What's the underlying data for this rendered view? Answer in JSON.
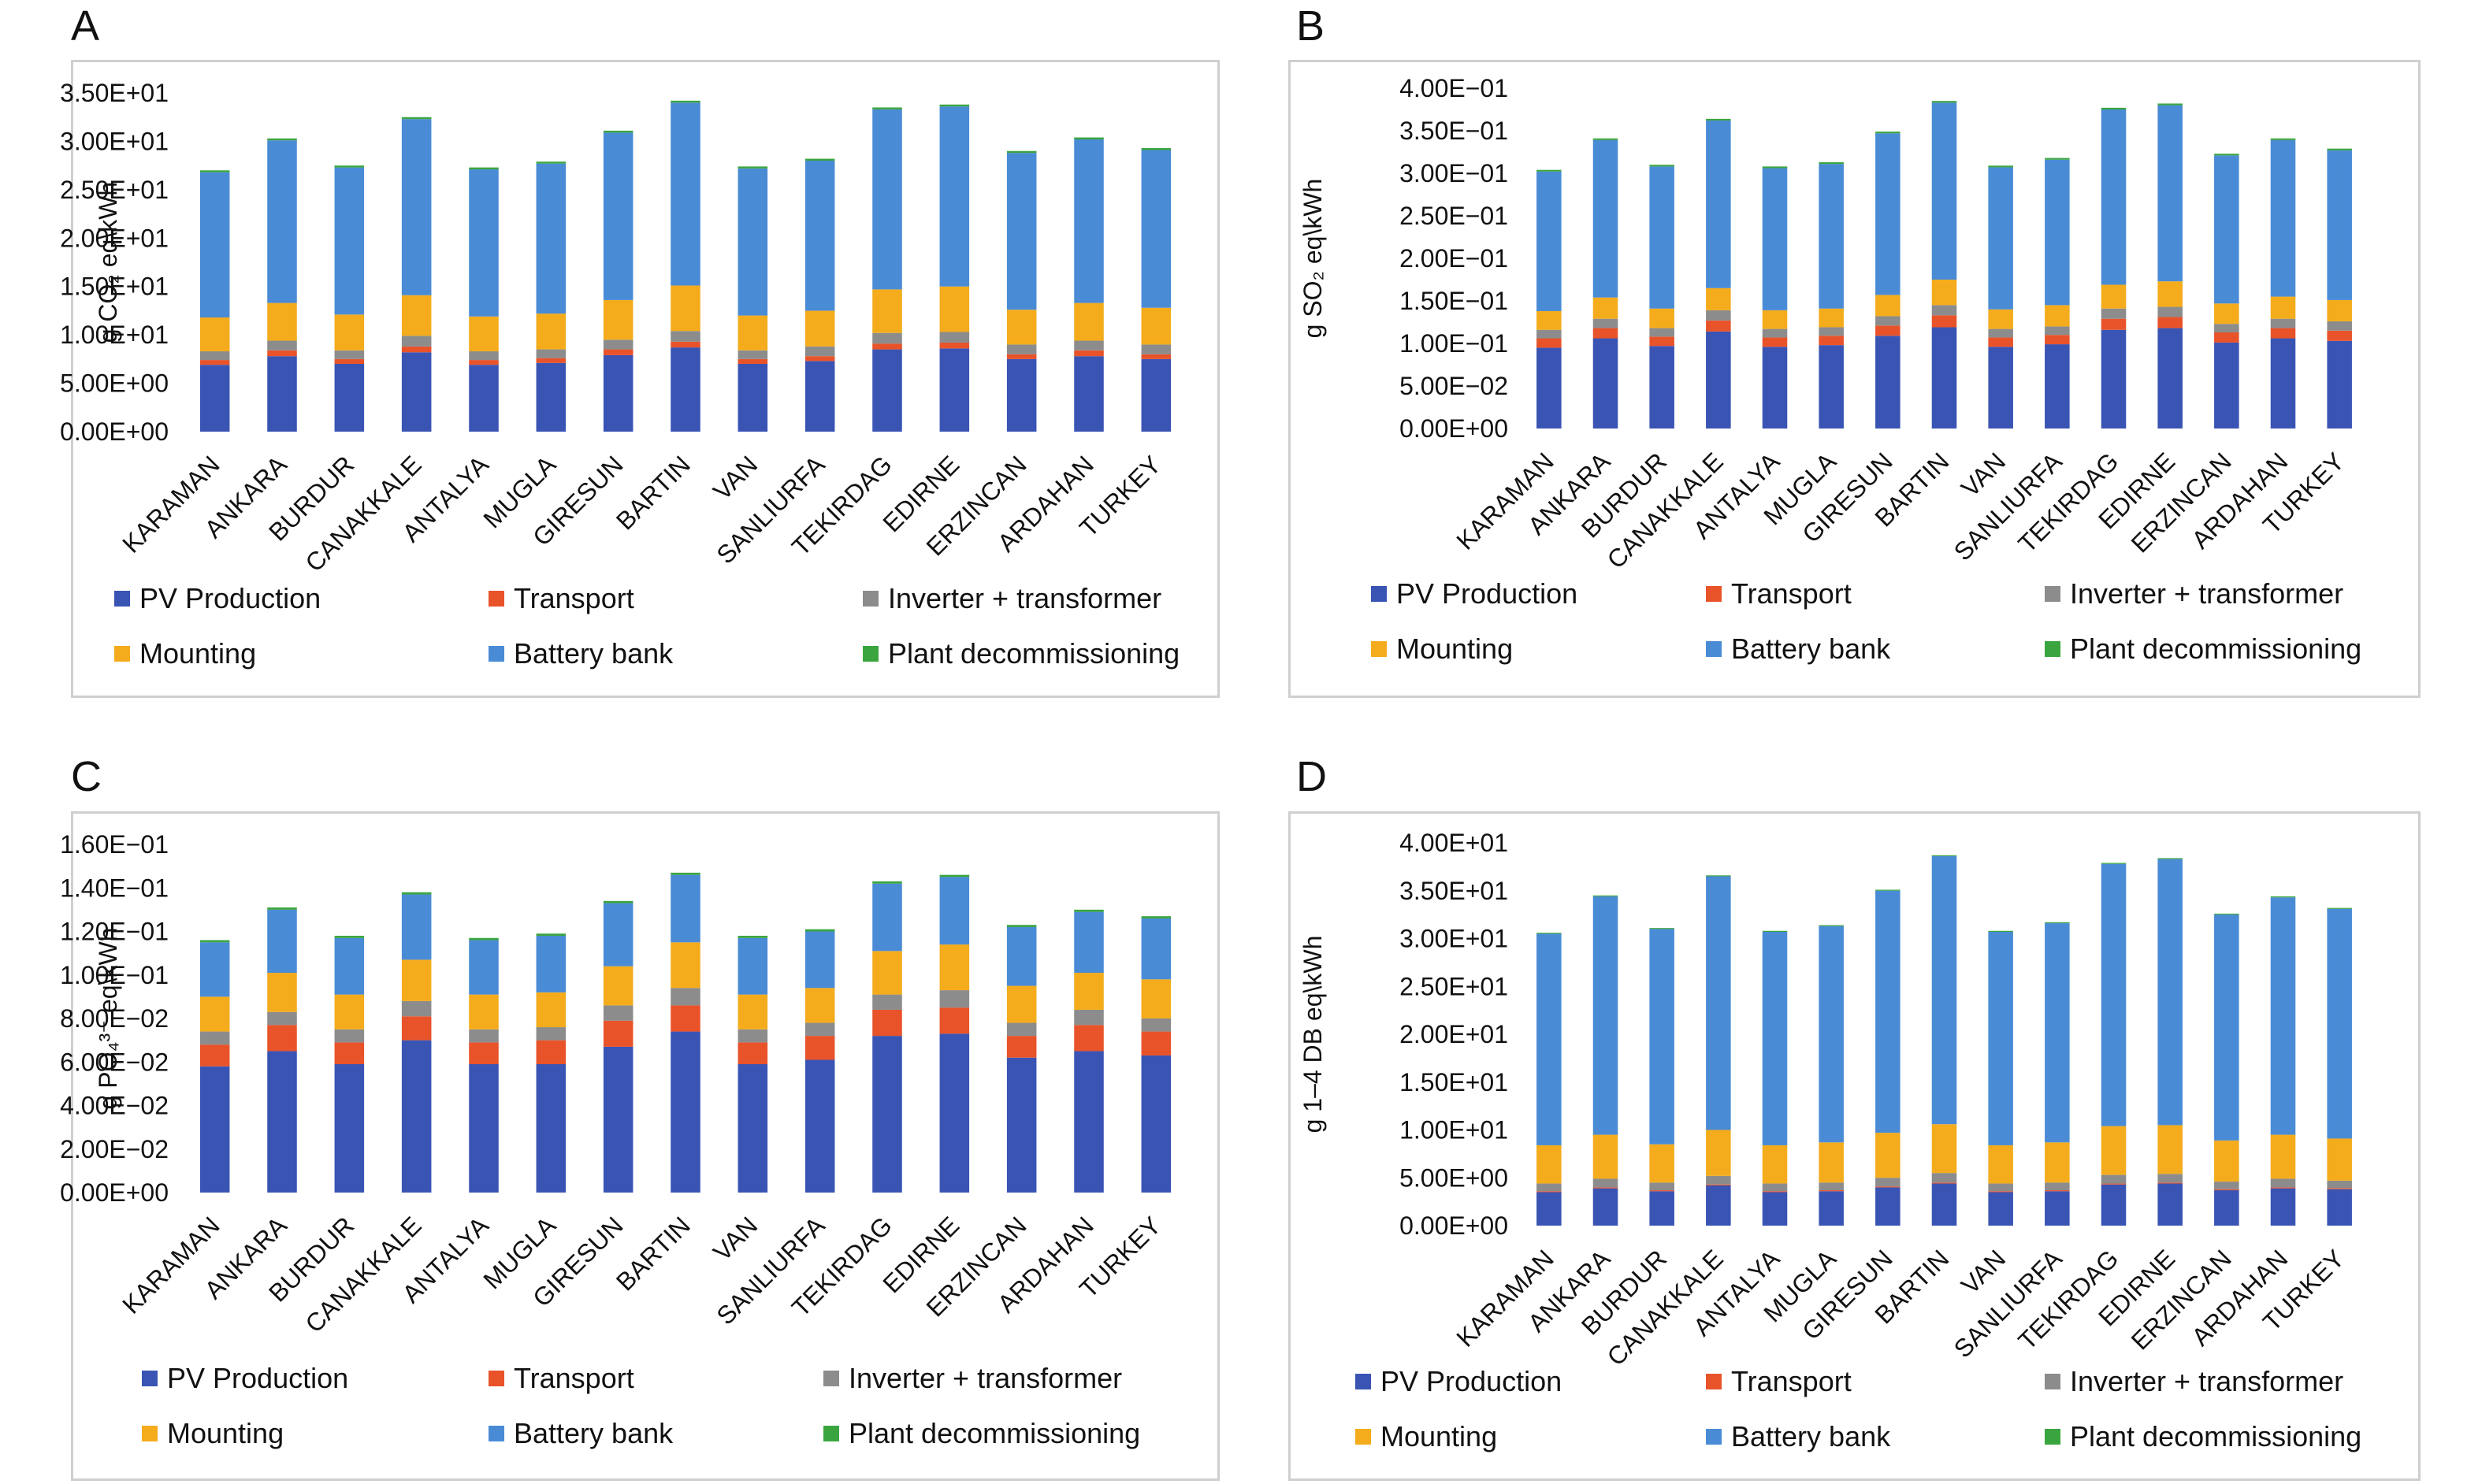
{
  "panel_letters": [
    "A",
    "B",
    "C",
    "D"
  ],
  "legend": [
    {
      "name": "PV Production",
      "color": "#3a54b4"
    },
    {
      "name": "Transport",
      "color": "#e8532a"
    },
    {
      "name": "Inverter + transformer",
      "color": "#8c8c8c"
    },
    {
      "name": "Mounting",
      "color": "#f4ac1c"
    },
    {
      "name": "Battery bank",
      "color": "#4a8bd6"
    },
    {
      "name": "Plant decommissioning",
      "color": "#3aa53f"
    }
  ],
  "chart_data": [
    {
      "type": "bar",
      "stacked": true,
      "panel": "A",
      "ylabel": "g CO₂ eq\\kWh",
      "ylim": [
        0,
        35
      ],
      "yticks": [
        "0.00E+00",
        "5.00E+00",
        "1.00E+01",
        "1.50E+01",
        "2.00E+01",
        "2.50E+01",
        "3.00E+01",
        "3.50E+01"
      ],
      "categories": [
        "KARAMAN",
        "ANKARA",
        "BURDUR",
        "CANAKKALE",
        "ANTALYA",
        "MUGLA",
        "GIRESUN",
        "BARTIN",
        "VAN",
        "SANLIURFA",
        "TEKIRDAG",
        "EDIRNE",
        "ERZINCAN",
        "ARDAHAN",
        "TURKEY"
      ],
      "series": [
        {
          "name": "PV Production",
          "values": [
            6.9,
            7.8,
            7.0,
            8.2,
            6.9,
            7.1,
            7.9,
            8.7,
            7.0,
            7.3,
            8.5,
            8.6,
            7.5,
            7.8,
            7.5
          ]
        },
        {
          "name": "Transport",
          "values": [
            0.5,
            0.6,
            0.5,
            0.6,
            0.5,
            0.5,
            0.6,
            0.6,
            0.5,
            0.5,
            0.6,
            0.6,
            0.5,
            0.6,
            0.5
          ]
        },
        {
          "name": "Inverter + transformer",
          "values": [
            0.9,
            1.0,
            0.9,
            1.1,
            0.9,
            0.9,
            1.0,
            1.1,
            0.9,
            1.0,
            1.1,
            1.1,
            1.0,
            1.0,
            1.0
          ]
        },
        {
          "name": "Mounting",
          "values": [
            3.5,
            3.9,
            3.7,
            4.2,
            3.6,
            3.7,
            4.1,
            4.7,
            3.6,
            3.7,
            4.5,
            4.7,
            3.6,
            3.9,
            3.8
          ]
        },
        {
          "name": "Battery bank",
          "values": [
            15.0,
            16.8,
            15.2,
            18.2,
            15.2,
            15.5,
            17.3,
            18.9,
            15.2,
            15.5,
            18.6,
            18.6,
            16.2,
            16.9,
            16.3
          ]
        },
        {
          "name": "Plant decommissioning",
          "values": [
            0.2,
            0.2,
            0.2,
            0.2,
            0.2,
            0.2,
            0.2,
            0.2,
            0.2,
            0.2,
            0.2,
            0.2,
            0.2,
            0.2,
            0.2
          ]
        }
      ]
    },
    {
      "type": "bar",
      "stacked": true,
      "panel": "B",
      "ylabel": "g SO₂ eq\\kWh",
      "ylim": [
        0,
        0.4
      ],
      "yticks": [
        "0.00E+00",
        "5.00E−02",
        "1.00E−01",
        "1.50E−01",
        "2.00E−01",
        "2.50E−01",
        "3.00E−01",
        "3.50E−01",
        "4.00E−01"
      ],
      "categories": [
        "KARAMAN",
        "ANKARA",
        "BURDUR",
        "CANAKKALE",
        "ANTALYA",
        "MUGLA",
        "GIRESUN",
        "BARTIN",
        "VAN",
        "SANLIURFA",
        "TEKIRDAG",
        "EDIRNE",
        "ERZINCAN",
        "ARDAHAN",
        "TURKEY"
      ],
      "series": [
        {
          "name": "PV Production",
          "values": [
            0.095,
            0.106,
            0.097,
            0.114,
            0.096,
            0.098,
            0.109,
            0.119,
            0.096,
            0.099,
            0.116,
            0.118,
            0.101,
            0.106,
            0.103
          ]
        },
        {
          "name": "Transport",
          "values": [
            0.011,
            0.012,
            0.011,
            0.013,
            0.011,
            0.011,
            0.012,
            0.014,
            0.011,
            0.011,
            0.013,
            0.013,
            0.012,
            0.012,
            0.012
          ]
        },
        {
          "name": "Inverter + transformer",
          "values": [
            0.01,
            0.011,
            0.01,
            0.012,
            0.01,
            0.01,
            0.011,
            0.012,
            0.01,
            0.01,
            0.012,
            0.012,
            0.01,
            0.011,
            0.011
          ]
        },
        {
          "name": "Mounting",
          "values": [
            0.022,
            0.025,
            0.023,
            0.026,
            0.022,
            0.022,
            0.025,
            0.03,
            0.023,
            0.025,
            0.028,
            0.03,
            0.024,
            0.026,
            0.025
          ]
        },
        {
          "name": "Battery bank",
          "values": [
            0.164,
            0.185,
            0.167,
            0.197,
            0.167,
            0.17,
            0.19,
            0.208,
            0.167,
            0.171,
            0.206,
            0.207,
            0.174,
            0.184,
            0.176
          ]
        },
        {
          "name": "Plant decommissioning",
          "values": [
            0.002,
            0.002,
            0.002,
            0.002,
            0.002,
            0.002,
            0.002,
            0.002,
            0.002,
            0.002,
            0.002,
            0.002,
            0.002,
            0.002,
            0.002
          ]
        }
      ]
    },
    {
      "type": "bar",
      "stacked": true,
      "panel": "C",
      "ylabel": "g PO₄³⁻ eq\\kWh",
      "ylim": [
        0,
        0.16
      ],
      "yticks": [
        "0.00E+00",
        "2.00E−02",
        "4.00E−02",
        "6.00E−02",
        "8.00E−02",
        "1.00E−01",
        "1.20E−01",
        "1.40E−01",
        "1.60E−01"
      ],
      "categories": [
        "KARAMAN",
        "ANKARA",
        "BURDUR",
        "CANAKKALE",
        "ANTALYA",
        "MUGLA",
        "GIRESUN",
        "BARTIN",
        "VAN",
        "SANLIURFA",
        "TEKIRDAG",
        "EDIRNE",
        "ERZINCAN",
        "ARDAHAN",
        "TURKEY"
      ],
      "series": [
        {
          "name": "PV Production",
          "values": [
            0.058,
            0.065,
            0.059,
            0.07,
            0.059,
            0.059,
            0.067,
            0.074,
            0.059,
            0.061,
            0.072,
            0.073,
            0.062,
            0.065,
            0.063
          ]
        },
        {
          "name": "Transport",
          "values": [
            0.01,
            0.012,
            0.01,
            0.011,
            0.01,
            0.011,
            0.012,
            0.012,
            0.01,
            0.011,
            0.012,
            0.012,
            0.01,
            0.012,
            0.011
          ]
        },
        {
          "name": "Inverter + transformer",
          "values": [
            0.006,
            0.006,
            0.006,
            0.007,
            0.006,
            0.006,
            0.007,
            0.008,
            0.006,
            0.006,
            0.007,
            0.008,
            0.006,
            0.007,
            0.006
          ]
        },
        {
          "name": "Mounting",
          "values": [
            0.016,
            0.018,
            0.016,
            0.019,
            0.016,
            0.016,
            0.018,
            0.021,
            0.016,
            0.016,
            0.02,
            0.021,
            0.017,
            0.017,
            0.018
          ]
        },
        {
          "name": "Battery bank",
          "values": [
            0.025,
            0.029,
            0.026,
            0.03,
            0.025,
            0.026,
            0.029,
            0.031,
            0.026,
            0.026,
            0.031,
            0.031,
            0.027,
            0.028,
            0.028
          ]
        },
        {
          "name": "Plant decommissioning",
          "values": [
            0.001,
            0.001,
            0.001,
            0.001,
            0.001,
            0.001,
            0.001,
            0.001,
            0.001,
            0.001,
            0.001,
            0.001,
            0.001,
            0.001,
            0.001
          ]
        }
      ]
    },
    {
      "type": "bar",
      "stacked": true,
      "panel": "D",
      "ylabel": "g 1–4 DB eq\\kWh",
      "ylim": [
        0,
        40
      ],
      "yticks": [
        "0.00E+00",
        "5.00E+00",
        "1.00E+01",
        "1.50E+01",
        "2.00E+01",
        "2.50E+01",
        "3.00E+01",
        "3.50E+01",
        "4.00E+01"
      ],
      "categories": [
        "KARAMAN",
        "ANKARA",
        "BURDUR",
        "CANAKKALE",
        "ANTALYA",
        "MUGLA",
        "GIRESUN",
        "BARTIN",
        "VAN",
        "SANLIURFA",
        "TEKIRDAG",
        "EDIRNE",
        "ERZINCAN",
        "ARDAHAN",
        "TURKEY"
      ],
      "series": [
        {
          "name": "PV Production",
          "values": [
            3.5,
            3.9,
            3.6,
            4.2,
            3.5,
            3.6,
            4.0,
            4.4,
            3.5,
            3.6,
            4.3,
            4.4,
            3.7,
            3.9,
            3.8
          ]
        },
        {
          "name": "Transport",
          "values": [
            0.1,
            0.1,
            0.1,
            0.1,
            0.1,
            0.1,
            0.1,
            0.1,
            0.1,
            0.1,
            0.1,
            0.1,
            0.1,
            0.1,
            0.1
          ]
        },
        {
          "name": "Inverter + transformer",
          "values": [
            0.8,
            0.9,
            0.8,
            0.9,
            0.8,
            0.8,
            0.9,
            1.0,
            0.8,
            0.8,
            0.9,
            0.9,
            0.8,
            0.9,
            0.8
          ]
        },
        {
          "name": "Mounting",
          "values": [
            4.0,
            4.6,
            4.0,
            4.8,
            4.0,
            4.2,
            4.7,
            5.1,
            4.0,
            4.2,
            5.1,
            5.1,
            4.3,
            4.6,
            4.4
          ]
        },
        {
          "name": "Battery bank",
          "values": [
            22.1,
            24.9,
            22.5,
            26.5,
            22.3,
            22.6,
            25.3,
            28.0,
            22.3,
            22.9,
            27.4,
            27.8,
            23.6,
            24.8,
            24.0
          ]
        },
        {
          "name": "Plant decommissioning",
          "values": [
            0.1,
            0.1,
            0.1,
            0.1,
            0.1,
            0.1,
            0.1,
            0.1,
            0.1,
            0.1,
            0.1,
            0.1,
            0.1,
            0.1,
            0.1
          ]
        }
      ]
    }
  ]
}
